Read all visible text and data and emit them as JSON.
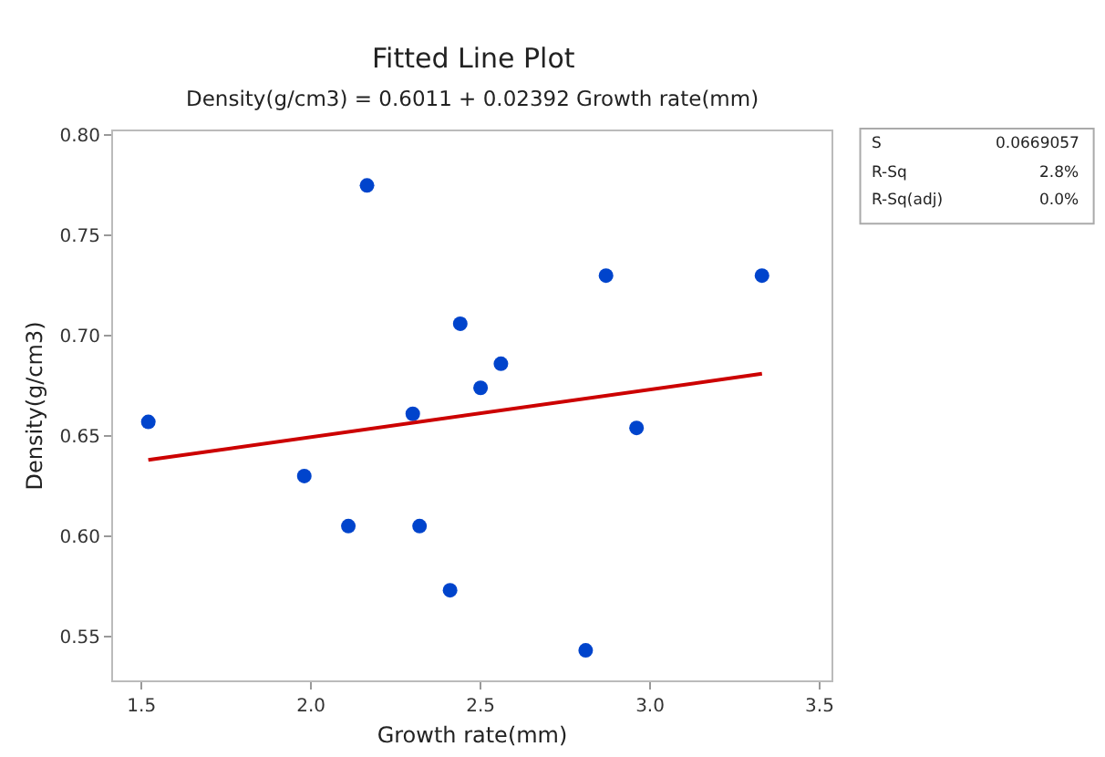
{
  "chart_data": {
    "type": "scatter",
    "title": "Fitted Line Plot",
    "subtitle": "Density(g/cm3) = 0.6011 + 0.02392 Growth rate(mm)",
    "xlabel": "Growth rate(mm)",
    "ylabel": "Density(g/cm3)",
    "xlim": [
      1.416,
      3.535
    ],
    "xticks": [
      {
        "value": 1.5,
        "label": "1.5"
      },
      {
        "value": 2,
        "label": "2.0"
      },
      {
        "value": 2.5,
        "label": "2.5"
      },
      {
        "value": 3,
        "label": "3.0"
      },
      {
        "value": 3.5,
        "label": "3.5"
      }
    ],
    "ylim": [
      0.528,
      0.802
    ],
    "yticks": [
      0.55,
      {
        "value": 0.6,
        "label": "0.60"
      },
      0.65,
      {
        "value": 0.7,
        "label": "0.70"
      },
      0.75,
      {
        "value": 0.8,
        "label": "0.80"
      }
    ],
    "grid": false,
    "series": [
      {
        "type": "scatter",
        "marker": "circle",
        "color": "#0044cc",
        "x": [
          1.52,
          2.165,
          1.98,
          2.11,
          2.3,
          2.32,
          2.41,
          2.44,
          2.5,
          2.56,
          2.87,
          2.81,
          2.96,
          3.33
        ],
        "values": [
          0.657,
          0.775,
          0.63,
          0.605,
          0.661,
          0.605,
          0.573,
          0.706,
          0.674,
          0.686,
          0.73,
          0.543,
          0.654,
          0.73
        ]
      },
      {
        "type": "line",
        "color": "#cc0000",
        "x": [
          1.52,
          3.33
        ],
        "values": [
          0.638,
          0.681
        ]
      }
    ],
    "annotations": [
      "S",
      "0.0669057",
      "R-Sq",
      "2.8%",
      "R-Sq(adj)",
      "0.0%"
    ]
  }
}
